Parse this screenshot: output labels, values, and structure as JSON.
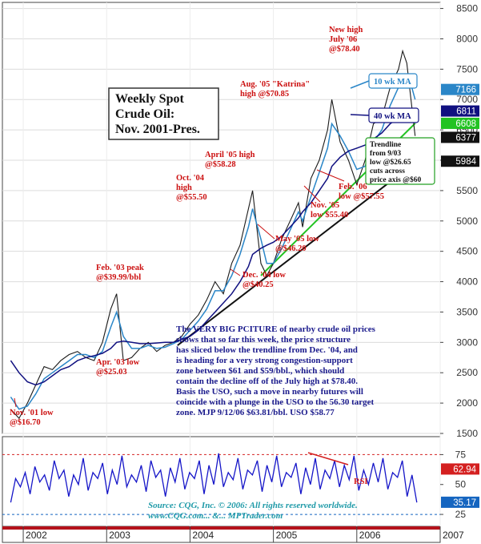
{
  "chart_data": [
    {
      "type": "line",
      "title": "Weekly Spot Crude Oil: Nov. 2001-Pres.",
      "title_lines": [
        "Weekly Spot",
        "Crude Oil:",
        "Nov. 2001-Pres."
      ],
      "x_ticks": [
        "2002",
        "2003",
        "2004",
        "2005",
        "2006",
        "2007"
      ],
      "ylim": [
        1500,
        8600
      ],
      "y_ticks": [
        "8500",
        "8000",
        "7500",
        "7000",
        "6500",
        "6000",
        "5500",
        "5000",
        "4500",
        "4000",
        "3500",
        "3000",
        "2500",
        "2000",
        "1500"
      ],
      "x": [
        2001.85,
        2001.95,
        2002.05,
        2002.15,
        2002.25,
        2002.35,
        2002.45,
        2002.55,
        2002.65,
        2002.75,
        2002.85,
        2002.95,
        2003.05,
        2003.12,
        2003.2,
        2003.3,
        2003.4,
        2003.5,
        2003.6,
        2003.7,
        2003.8,
        2003.9,
        2004.0,
        2004.1,
        2004.2,
        2004.3,
        2004.4,
        2004.5,
        2004.6,
        2004.7,
        2004.75,
        2004.85,
        2004.92,
        2005.0,
        2005.1,
        2005.2,
        2005.3,
        2005.35,
        2005.45,
        2005.55,
        2005.65,
        2005.7,
        2005.8,
        2005.9,
        2006.0,
        2006.1,
        2006.2,
        2006.3,
        2006.4,
        2006.5,
        2006.55,
        2006.6,
        2006.65,
        2006.7
      ],
      "series": [
        {
          "name": "Crude Oil",
          "color": "#1a1a1a",
          "values": [
            1900,
            1750,
            2000,
            2300,
            2600,
            2550,
            2700,
            2800,
            2850,
            2750,
            2700,
            3000,
            3550,
            3800,
            2700,
            2750,
            2900,
            3000,
            2850,
            2950,
            3000,
            3100,
            3300,
            3450,
            3700,
            4000,
            3800,
            4300,
            4600,
            5200,
            5500,
            4300,
            4100,
            4300,
            4700,
            5000,
            5300,
            4900,
            5700,
            6000,
            6500,
            7000,
            6300,
            6000,
            5600,
            6000,
            6600,
            6700,
            7200,
            7500,
            7800,
            7600,
            7000,
            6400
          ]
        },
        {
          "name": "10 wk MA",
          "color": "#2a86c8",
          "values": [
            2100,
            1900,
            1950,
            2150,
            2400,
            2500,
            2600,
            2700,
            2800,
            2800,
            2750,
            2850,
            3250,
            3500,
            3100,
            2900,
            2900,
            2950,
            2900,
            2920,
            2980,
            3050,
            3200,
            3350,
            3550,
            3850,
            3850,
            4100,
            4450,
            4900,
            5200,
            4700,
            4300,
            4300,
            4550,
            4850,
            5150,
            5000,
            5400,
            5800,
            6200,
            6600,
            6400,
            6150,
            5850,
            5900,
            6300,
            6500,
            6900,
            7200,
            7400,
            7400,
            7250,
            7000
          ]
        },
        {
          "name": "40 wk MA",
          "color": "#101080",
          "values": [
            2700,
            2500,
            2350,
            2300,
            2350,
            2450,
            2550,
            2600,
            2700,
            2750,
            2780,
            2820,
            2900,
            3000,
            3020,
            3000,
            2980,
            2980,
            2990,
            3000,
            3000,
            3050,
            3100,
            3200,
            3350,
            3500,
            3650,
            3800,
            4000,
            4250,
            4450,
            4550,
            4600,
            4650,
            4750,
            4900,
            5050,
            5150,
            5300,
            5500,
            5700,
            5900,
            6050,
            6150,
            6200,
            6250,
            6350,
            6450,
            6600,
            6700,
            6780,
            6810,
            6811,
            6811
          ]
        }
      ],
      "price_badges": [
        {
          "label": "7166",
          "value": 7166,
          "color": "#2a86c8"
        },
        {
          "label": "6811",
          "value": 6811,
          "color": "#101080"
        },
        {
          "label": "6608",
          "value": 6608,
          "color": "#22c322"
        },
        {
          "label": "6377",
          "value": 6377,
          "color": "#111111"
        },
        {
          "label": "5984",
          "value": 5984,
          "color": "#111111"
        }
      ],
      "trendlines": [
        {
          "name": "trendline-from-9-03",
          "color": "#111111",
          "x": [
            2003.85,
            2006.72
          ],
          "y": [
            2950,
            5984
          ]
        },
        {
          "name": "trendline-from-dec-04",
          "color": "#22c322",
          "x": [
            2004.85,
            2006.7
          ],
          "y": [
            4100,
            6608
          ]
        }
      ],
      "legend": [
        {
          "label": "10 wk MA",
          "color": "#2a86c8"
        },
        {
          "label": "40 wk MA",
          "color": "#101080"
        }
      ],
      "annotations": [
        {
          "id": "nov01",
          "lines": [
            "Nov. '01 low",
            "@$16.70"
          ]
        },
        {
          "id": "feb03",
          "lines": [
            "Feb. '03 peak",
            "@$39.99/bbl"
          ]
        },
        {
          "id": "apr03",
          "lines": [
            "Apr. '03 low",
            "@$25.03"
          ]
        },
        {
          "id": "oct04",
          "lines": [
            "Oct. '04",
            "high",
            "@$55.50"
          ]
        },
        {
          "id": "apr05",
          "lines": [
            "April '05 high",
            "@$58.28"
          ]
        },
        {
          "id": "aug05",
          "lines": [
            "Aug. '05 \"Katrina\"",
            "high @$70.85"
          ]
        },
        {
          "id": "newhigh",
          "lines": [
            "New high",
            "July '06",
            "@$78.40"
          ]
        },
        {
          "id": "dec04",
          "lines": [
            "Dec. '04 low",
            "@$40.25"
          ]
        },
        {
          "id": "may05",
          "lines": [
            "May '05 low",
            "@$46.20"
          ]
        },
        {
          "id": "nov05",
          "lines": [
            "Nov. '05",
            "low $55.40"
          ]
        },
        {
          "id": "feb06",
          "lines": [
            "Feb. '06",
            "low @$57.55"
          ]
        }
      ],
      "trendline_note": [
        "Trendline",
        "from 9/03",
        "low @$26.65",
        "cuts across",
        "price axis @$60"
      ],
      "commentary": [
        "The VERY BIG PCITURE of nearby crude oil prices",
        "shows that so far this week, the price structure",
        "has sliced below the trendline from Dec. '04, and",
        "is heading for a very strong congestion-support",
        "zone between $61 and $59/bbl., which should",
        "contain the decline off of the July high at $78.40.",
        "Basis the USO, such a move in nearby futures will",
        "coincide with a plunge in the USO to the 56.30 target",
        "zone.  MJP  9/12/06 $63.81/bbl.  USO $58.77"
      ]
    },
    {
      "type": "line",
      "title": "",
      "ylim": [
        15,
        90
      ],
      "y_ticks": [
        "75",
        "50",
        "25"
      ],
      "series": [
        {
          "name": "RSI",
          "color": "#1515c8",
          "values": [
            35,
            55,
            48,
            60,
            42,
            65,
            52,
            58,
            45,
            70,
            55,
            62,
            40,
            58,
            50,
            72,
            45,
            60,
            55,
            68,
            42,
            62,
            50,
            74,
            48,
            58,
            52,
            66,
            44,
            70,
            56,
            62,
            40,
            64,
            52,
            72,
            46,
            60,
            55,
            70,
            42,
            66,
            50,
            76,
            48,
            60,
            54,
            72,
            46,
            62,
            58,
            70,
            44,
            66,
            52,
            74,
            48,
            60,
            56,
            68,
            42,
            64,
            50,
            72,
            46,
            62,
            55,
            70,
            48,
            66,
            54,
            74,
            45,
            62,
            50,
            68,
            52,
            72,
            46,
            60,
            56,
            70,
            40,
            58,
            35
          ]
        }
      ],
      "reference_lines": [
        75,
        25
      ],
      "badges": [
        {
          "label": "62.94",
          "value": 62.94,
          "color": "#d42020"
        },
        {
          "label": "35.17",
          "value": 35.17,
          "color": "#1565c0"
        }
      ],
      "annotation": "RSI",
      "footer": [
        "Source: CQG, Inc. © 2006: All rights reserved worldwide.",
        "www.CQG.com... &... MPTrader.com"
      ]
    }
  ]
}
